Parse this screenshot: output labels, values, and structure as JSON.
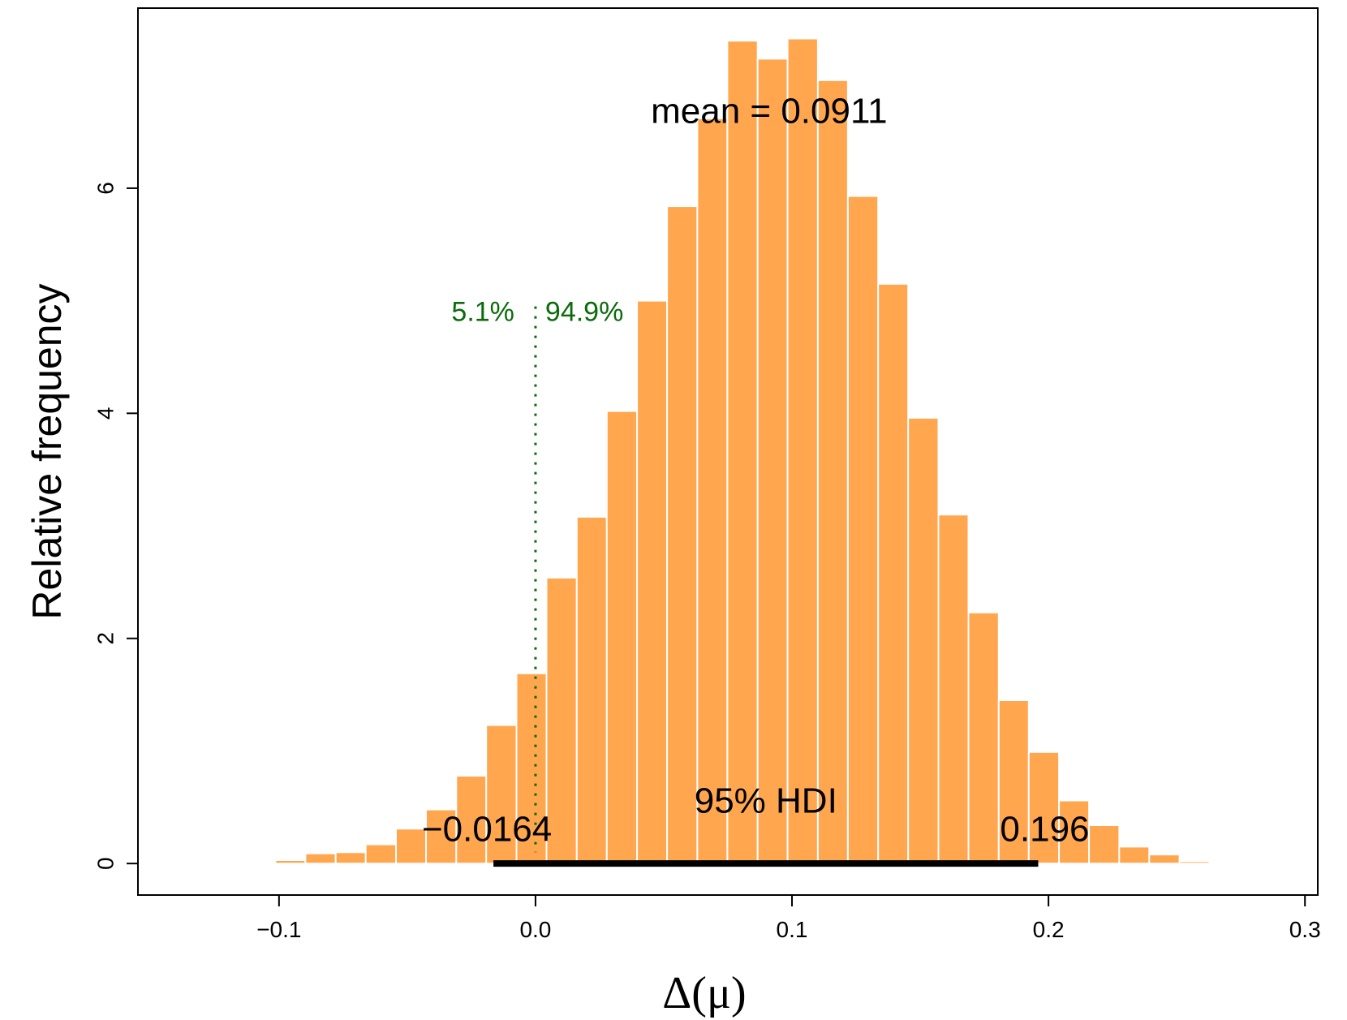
{
  "chart_data": {
    "type": "bar",
    "title": "",
    "xlabel": "Δ(μ)",
    "ylabel": "Relative frequency",
    "xlim": [
      -0.155,
      0.305
    ],
    "ylim": [
      -0.28,
      7.6
    ],
    "x_ticks": [
      -0.1,
      0.0,
      0.1,
      0.2,
      0.3
    ],
    "x_tick_labels": [
      "−0.1",
      "0.0",
      "0.1",
      "0.2",
      "0.3"
    ],
    "y_ticks": [
      0,
      2,
      4,
      6
    ],
    "y_tick_labels": [
      "0",
      "2",
      "4",
      "6"
    ],
    "bin_width": 0.01175,
    "bins": [
      {
        "x0": -0.1249,
        "x1": -0.1132,
        "value": 0.01
      },
      {
        "x0": -0.1132,
        "x1": -0.1014,
        "value": 0.01
      },
      {
        "x0": -0.1014,
        "x1": -0.0897,
        "value": 0.03
      },
      {
        "x0": -0.0897,
        "x1": -0.0779,
        "value": 0.09
      },
      {
        "x0": -0.0779,
        "x1": -0.0662,
        "value": 0.1
      },
      {
        "x0": -0.0662,
        "x1": -0.0544,
        "value": 0.17
      },
      {
        "x0": -0.0544,
        "x1": -0.0427,
        "value": 0.31
      },
      {
        "x0": -0.0427,
        "x1": -0.0309,
        "value": 0.48
      },
      {
        "x0": -0.0309,
        "x1": -0.0192,
        "value": 0.78
      },
      {
        "x0": -0.0192,
        "x1": -0.0074,
        "value": 1.23
      },
      {
        "x0": -0.0074,
        "x1": 0.0043,
        "value": 1.69
      },
      {
        "x0": 0.0043,
        "x1": 0.0161,
        "value": 2.54
      },
      {
        "x0": 0.0161,
        "x1": 0.0278,
        "value": 3.08
      },
      {
        "x0": 0.0278,
        "x1": 0.0396,
        "value": 4.02
      },
      {
        "x0": 0.0396,
        "x1": 0.0513,
        "value": 5.0
      },
      {
        "x0": 0.0513,
        "x1": 0.0631,
        "value": 5.84
      },
      {
        "x0": 0.0631,
        "x1": 0.0748,
        "value": 6.62
      },
      {
        "x0": 0.0748,
        "x1": 0.0866,
        "value": 7.31
      },
      {
        "x0": 0.0866,
        "x1": 0.0983,
        "value": 7.15
      },
      {
        "x0": 0.0983,
        "x1": 0.1101,
        "value": 7.33
      },
      {
        "x0": 0.1101,
        "x1": 0.1218,
        "value": 6.96
      },
      {
        "x0": 0.1218,
        "x1": 0.1336,
        "value": 5.93
      },
      {
        "x0": 0.1336,
        "x1": 0.1453,
        "value": 5.15
      },
      {
        "x0": 0.1453,
        "x1": 0.1571,
        "value": 3.96
      },
      {
        "x0": 0.1571,
        "x1": 0.1688,
        "value": 3.1
      },
      {
        "x0": 0.1688,
        "x1": 0.1806,
        "value": 2.23
      },
      {
        "x0": 0.1806,
        "x1": 0.1923,
        "value": 1.45
      },
      {
        "x0": 0.1923,
        "x1": 0.2041,
        "value": 0.99
      },
      {
        "x0": 0.2041,
        "x1": 0.2158,
        "value": 0.56
      },
      {
        "x0": 0.2158,
        "x1": 0.2276,
        "value": 0.34
      },
      {
        "x0": 0.2276,
        "x1": 0.2393,
        "value": 0.15
      },
      {
        "x0": 0.2393,
        "x1": 0.2511,
        "value": 0.08
      },
      {
        "x0": 0.2511,
        "x1": 0.2628,
        "value": 0.02
      },
      {
        "x0": 0.2628,
        "x1": 0.2746,
        "value": 0.01
      }
    ],
    "bar_color": "#FFA64F",
    "bar_edge_color": "#ffffff",
    "mean": 0.0911,
    "mean_label": "mean = 0.0911",
    "hdi": {
      "low": -0.0164,
      "high": 0.196,
      "label": "95% HDI",
      "low_label": "−0.0164",
      "high_label": "0.196",
      "color": "#000000"
    },
    "comparison": {
      "value": 0.0,
      "left_label": "5.1%",
      "right_label": "94.9%",
      "color": "#0b6b0b",
      "line_style": "dotted"
    },
    "grid": false,
    "legend": "none"
  }
}
